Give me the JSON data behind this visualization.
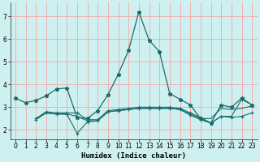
{
  "xlabel": "Humidex (Indice chaleur)",
  "bg_color": "#cff0f0",
  "grid_color": "#f0b0b0",
  "line_color": "#1a6b6b",
  "xlim": [
    -0.5,
    23.5
  ],
  "ylim": [
    1.6,
    7.6
  ],
  "xticks": [
    0,
    1,
    2,
    3,
    4,
    5,
    6,
    7,
    8,
    9,
    10,
    11,
    12,
    13,
    14,
    15,
    16,
    17,
    18,
    19,
    20,
    21,
    22,
    23
  ],
  "yticks": [
    2,
    3,
    4,
    5,
    6,
    7
  ],
  "line1_x": [
    0,
    1,
    2,
    3,
    4,
    5,
    6,
    7,
    8,
    9,
    10,
    11,
    12,
    13,
    14,
    15,
    16,
    17,
    18,
    19,
    20,
    21,
    22,
    23
  ],
  "line1_y": [
    3.4,
    3.2,
    3.3,
    3.5,
    3.8,
    3.85,
    2.55,
    2.5,
    2.85,
    3.55,
    4.45,
    5.5,
    7.2,
    5.95,
    5.45,
    3.6,
    3.35,
    3.1,
    2.5,
    2.3,
    3.1,
    3.0,
    3.4,
    3.1
  ],
  "line2_x": [
    2,
    3,
    4,
    5,
    6,
    7,
    8,
    9,
    10,
    11,
    12,
    13,
    14,
    15,
    16,
    17,
    18,
    19,
    20,
    21,
    22,
    23
  ],
  "line2_y": [
    2.5,
    2.8,
    2.75,
    2.75,
    2.75,
    2.45,
    2.45,
    2.85,
    2.9,
    2.95,
    3.0,
    3.0,
    3.0,
    3.0,
    2.95,
    2.75,
    2.55,
    2.3,
    2.6,
    2.6,
    3.35,
    3.1
  ],
  "line3_x": [
    2,
    3,
    4,
    5,
    6,
    7,
    8,
    9,
    10,
    11,
    12,
    13,
    14,
    15,
    16,
    17,
    18,
    19,
    20,
    21,
    22,
    23
  ],
  "line3_y": [
    2.5,
    2.75,
    2.7,
    2.7,
    2.6,
    2.4,
    2.4,
    2.8,
    2.85,
    2.9,
    2.95,
    2.95,
    2.95,
    2.95,
    2.9,
    2.7,
    2.5,
    2.5,
    2.95,
    2.9,
    2.95,
    3.05
  ],
  "line4_x": [
    2,
    3,
    4,
    5,
    6,
    7,
    8,
    9,
    10,
    11,
    12,
    13,
    14,
    15,
    16,
    17,
    18,
    19,
    20,
    21,
    22,
    23
  ],
  "line4_y": [
    2.45,
    2.75,
    2.7,
    2.7,
    1.85,
    2.35,
    2.4,
    2.8,
    2.85,
    2.9,
    2.95,
    2.95,
    2.95,
    2.95,
    2.9,
    2.65,
    2.45,
    2.3,
    2.6,
    2.55,
    2.6,
    2.75
  ]
}
